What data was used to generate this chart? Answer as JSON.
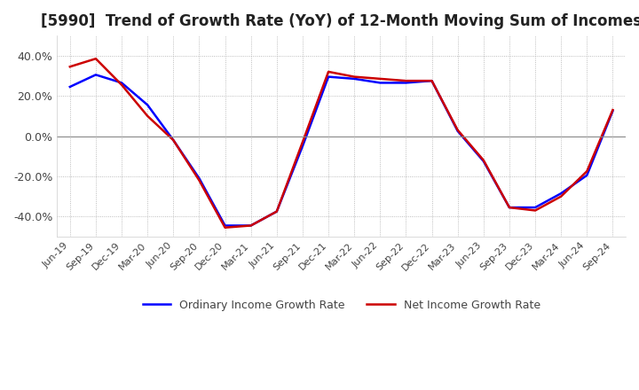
{
  "title": "[5990]  Trend of Growth Rate (YoY) of 12-Month Moving Sum of Incomes",
  "title_fontsize": 12,
  "ylim": [
    -0.5,
    0.5
  ],
  "yticks": [
    -0.4,
    -0.2,
    0.0,
    0.2,
    0.4
  ],
  "background_color": "#ffffff",
  "grid_color": "#aaaaaa",
  "zero_line_color": "#888888",
  "legend_labels": [
    "Ordinary Income Growth Rate",
    "Net Income Growth Rate"
  ],
  "legend_colors": [
    "#0000ff",
    "#cc0000"
  ],
  "x_labels": [
    "Jun-19",
    "Sep-19",
    "Dec-19",
    "Mar-20",
    "Jun-20",
    "Sep-20",
    "Dec-20",
    "Mar-21",
    "Jun-21",
    "Sep-21",
    "Dec-21",
    "Mar-22",
    "Jun-22",
    "Sep-22",
    "Dec-22",
    "Mar-23",
    "Jun-23",
    "Sep-23",
    "Dec-23",
    "Mar-24",
    "Jun-24",
    "Sep-24"
  ],
  "ordinary_income": [
    0.245,
    0.305,
    0.265,
    0.155,
    -0.02,
    -0.21,
    -0.445,
    -0.445,
    -0.375,
    -0.05,
    0.295,
    0.285,
    0.265,
    0.265,
    0.275,
    0.025,
    -0.125,
    -0.355,
    -0.355,
    -0.285,
    -0.195,
    0.125
  ],
  "net_income": [
    0.345,
    0.385,
    0.255,
    0.1,
    -0.02,
    -0.22,
    -0.455,
    -0.445,
    -0.375,
    -0.03,
    0.32,
    0.295,
    0.285,
    0.275,
    0.275,
    0.03,
    -0.12,
    -0.355,
    -0.37,
    -0.3,
    -0.175,
    0.13
  ]
}
